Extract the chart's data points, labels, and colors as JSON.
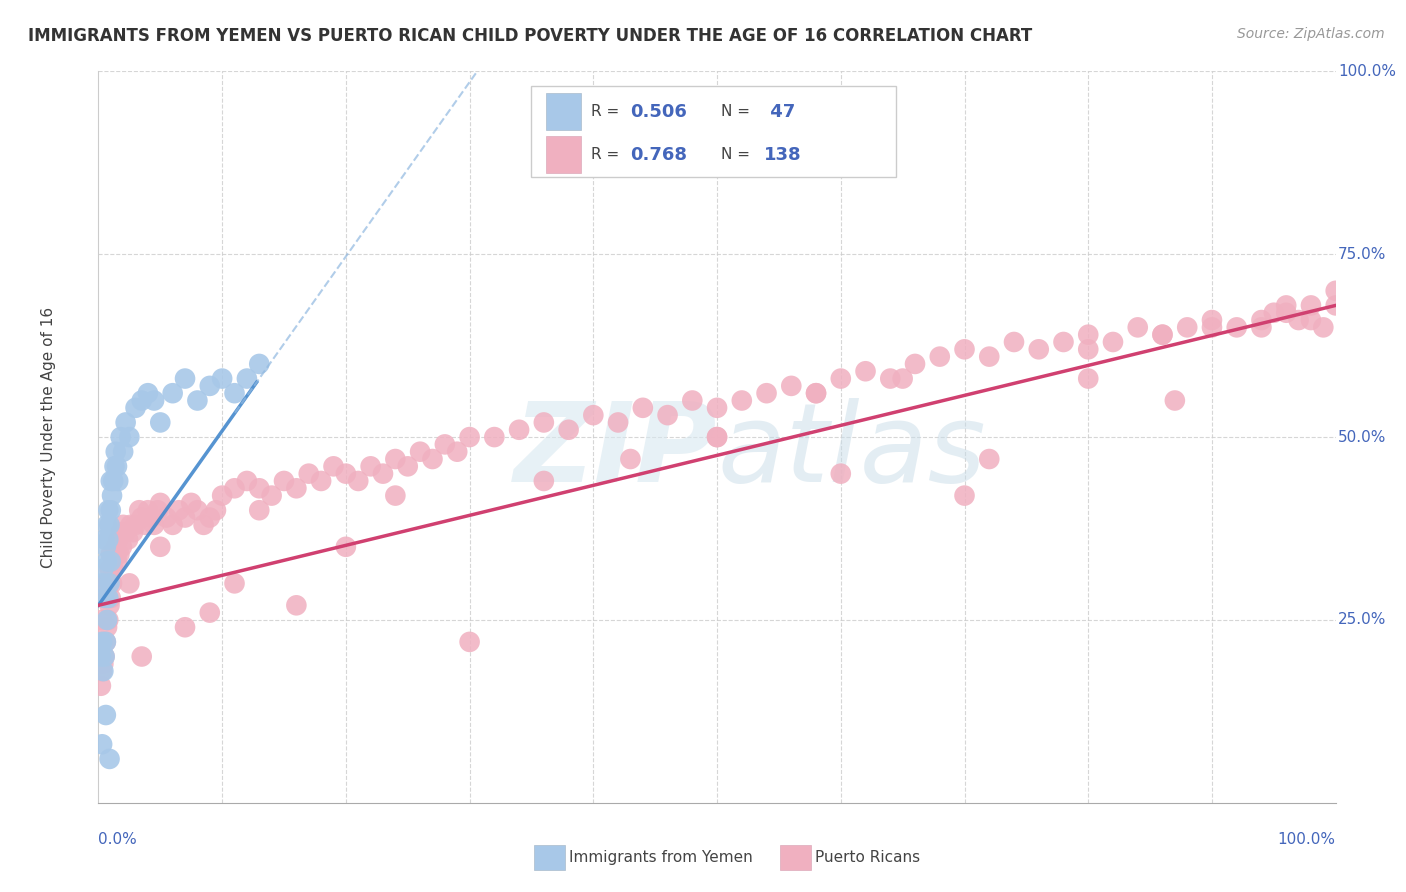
{
  "title": "IMMIGRANTS FROM YEMEN VS PUERTO RICAN CHILD POVERTY UNDER THE AGE OF 16 CORRELATION CHART",
  "source": "Source: ZipAtlas.com",
  "ylabel": "Child Poverty Under the Age of 16",
  "legend_entries": [
    {
      "label": "Immigrants from Yemen",
      "R": "0.506",
      "N": "47",
      "color": "#a8c8e8",
      "edge_color": "#7aaad0",
      "line_color": "#4488cc"
    },
    {
      "label": "Puerto Ricans",
      "R": "0.768",
      "N": "138",
      "color": "#f0b0c0",
      "edge_color": "#d888a0",
      "line_color": "#d04070"
    }
  ],
  "watermark_text": "ZIPatlas",
  "background_color": "#ffffff",
  "grid_color": "#cccccc",
  "title_color": "#333333",
  "source_color": "#999999",
  "tick_color": "#4466bb",
  "blue_scatter_x": [
    0.002,
    0.003,
    0.003,
    0.004,
    0.004,
    0.005,
    0.005,
    0.005,
    0.006,
    0.006,
    0.007,
    0.007,
    0.007,
    0.008,
    0.008,
    0.008,
    0.009,
    0.009,
    0.01,
    0.01,
    0.01,
    0.011,
    0.012,
    0.013,
    0.014,
    0.015,
    0.016,
    0.018,
    0.02,
    0.022,
    0.025,
    0.03,
    0.035,
    0.04,
    0.045,
    0.05,
    0.06,
    0.07,
    0.08,
    0.09,
    0.1,
    0.11,
    0.12,
    0.13,
    0.003,
    0.006,
    0.009
  ],
  "blue_scatter_y": [
    0.2,
    0.22,
    0.3,
    0.18,
    0.32,
    0.2,
    0.28,
    0.36,
    0.22,
    0.35,
    0.25,
    0.33,
    0.38,
    0.28,
    0.36,
    0.4,
    0.3,
    0.38,
    0.33,
    0.4,
    0.44,
    0.42,
    0.44,
    0.46,
    0.48,
    0.46,
    0.44,
    0.5,
    0.48,
    0.52,
    0.5,
    0.54,
    0.55,
    0.56,
    0.55,
    0.52,
    0.56,
    0.58,
    0.55,
    0.57,
    0.58,
    0.56,
    0.58,
    0.6,
    0.08,
    0.12,
    0.06
  ],
  "pink_scatter_x": [
    0.002,
    0.003,
    0.003,
    0.004,
    0.004,
    0.005,
    0.005,
    0.006,
    0.006,
    0.007,
    0.007,
    0.008,
    0.008,
    0.009,
    0.009,
    0.01,
    0.01,
    0.011,
    0.012,
    0.013,
    0.014,
    0.015,
    0.016,
    0.017,
    0.018,
    0.019,
    0.02,
    0.022,
    0.024,
    0.026,
    0.028,
    0.03,
    0.033,
    0.035,
    0.038,
    0.04,
    0.043,
    0.045,
    0.048,
    0.05,
    0.055,
    0.06,
    0.065,
    0.07,
    0.075,
    0.08,
    0.085,
    0.09,
    0.095,
    0.1,
    0.11,
    0.12,
    0.13,
    0.14,
    0.15,
    0.16,
    0.17,
    0.18,
    0.19,
    0.2,
    0.21,
    0.22,
    0.23,
    0.24,
    0.25,
    0.26,
    0.27,
    0.28,
    0.29,
    0.3,
    0.32,
    0.34,
    0.36,
    0.38,
    0.4,
    0.42,
    0.44,
    0.46,
    0.48,
    0.5,
    0.52,
    0.54,
    0.56,
    0.58,
    0.6,
    0.62,
    0.64,
    0.66,
    0.68,
    0.7,
    0.72,
    0.74,
    0.76,
    0.78,
    0.8,
    0.82,
    0.84,
    0.86,
    0.88,
    0.9,
    0.92,
    0.94,
    0.96,
    0.98,
    1.0,
    0.015,
    0.025,
    0.035,
    0.05,
    0.07,
    0.09,
    0.11,
    0.13,
    0.16,
    0.2,
    0.24,
    0.3,
    0.36,
    0.43,
    0.5,
    0.58,
    0.65,
    0.72,
    0.8,
    0.87,
    0.94,
    0.5,
    0.6,
    0.7,
    0.8,
    0.86,
    0.9,
    0.95,
    0.96,
    0.97,
    0.98,
    0.99,
    1.0
  ],
  "pink_scatter_y": [
    0.16,
    0.18,
    0.25,
    0.19,
    0.22,
    0.2,
    0.28,
    0.22,
    0.3,
    0.24,
    0.28,
    0.25,
    0.3,
    0.27,
    0.32,
    0.28,
    0.34,
    0.3,
    0.32,
    0.34,
    0.35,
    0.33,
    0.36,
    0.34,
    0.37,
    0.35,
    0.38,
    0.37,
    0.36,
    0.38,
    0.37,
    0.38,
    0.4,
    0.39,
    0.38,
    0.4,
    0.39,
    0.38,
    0.4,
    0.41,
    0.39,
    0.38,
    0.4,
    0.39,
    0.41,
    0.4,
    0.38,
    0.39,
    0.4,
    0.42,
    0.43,
    0.44,
    0.43,
    0.42,
    0.44,
    0.43,
    0.45,
    0.44,
    0.46,
    0.45,
    0.44,
    0.46,
    0.45,
    0.47,
    0.46,
    0.48,
    0.47,
    0.49,
    0.48,
    0.5,
    0.5,
    0.51,
    0.52,
    0.51,
    0.53,
    0.52,
    0.54,
    0.53,
    0.55,
    0.54,
    0.55,
    0.56,
    0.57,
    0.56,
    0.58,
    0.59,
    0.58,
    0.6,
    0.61,
    0.62,
    0.61,
    0.63,
    0.62,
    0.63,
    0.64,
    0.63,
    0.65,
    0.64,
    0.65,
    0.66,
    0.65,
    0.66,
    0.67,
    0.66,
    0.68,
    0.34,
    0.3,
    0.2,
    0.35,
    0.24,
    0.26,
    0.3,
    0.4,
    0.27,
    0.35,
    0.42,
    0.22,
    0.44,
    0.47,
    0.5,
    0.56,
    0.58,
    0.47,
    0.62,
    0.55,
    0.65,
    0.5,
    0.45,
    0.42,
    0.58,
    0.64,
    0.65,
    0.67,
    0.68,
    0.66,
    0.68,
    0.65,
    0.7
  ]
}
